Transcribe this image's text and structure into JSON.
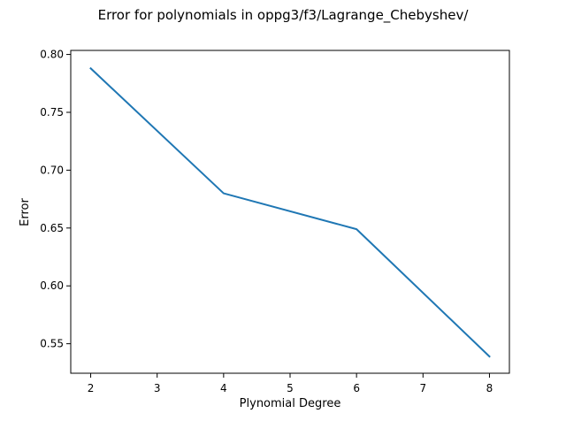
{
  "chart_data": {
    "type": "line",
    "title": "Error for polynomials in oppg3/f3/Lagrange_Chebyshev/",
    "xlabel": "Plynomial Degree",
    "ylabel": "Error",
    "xlim": [
      1.7,
      8.3
    ],
    "ylim": [
      0.5245,
      0.8035
    ],
    "x_ticks": [
      2,
      3,
      4,
      5,
      6,
      7,
      8
    ],
    "y_ticks": [
      0.55,
      0.6,
      0.65,
      0.7,
      0.75,
      0.8
    ],
    "x_tick_labels": [
      "2",
      "3",
      "4",
      "5",
      "6",
      "7",
      "8"
    ],
    "y_tick_labels": [
      "0.55",
      "0.60",
      "0.65",
      "0.70",
      "0.75",
      "0.80"
    ],
    "grid": false,
    "legend": "none",
    "series": [
      {
        "color": "#1f77b4",
        "x": [
          2,
          4,
          6,
          8
        ],
        "y": [
          0.788,
          0.68,
          0.649,
          0.539
        ]
      }
    ]
  }
}
